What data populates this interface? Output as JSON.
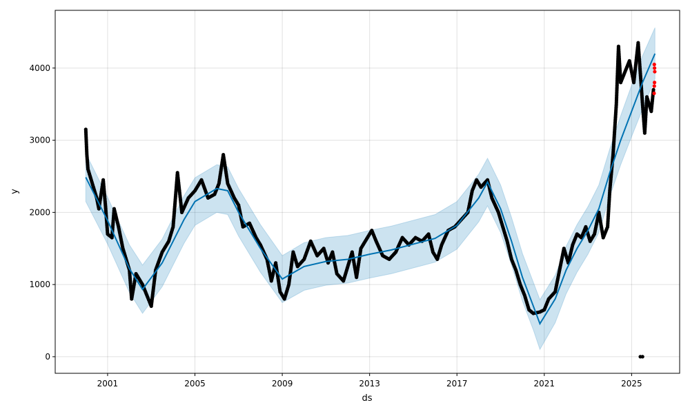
{
  "chart_data": {
    "type": "line",
    "title": "",
    "xlabel": "ds",
    "ylabel": "y",
    "xlim": [
      1998.6,
      2027.2
    ],
    "ylim": [
      -230,
      4800
    ],
    "grid": true,
    "x_ticks": [
      2001,
      2005,
      2009,
      2013,
      2017,
      2021,
      2025
    ],
    "x_tick_labels": [
      "2001",
      "2005",
      "2009",
      "2013",
      "2017",
      "2021",
      "2025"
    ],
    "y_ticks": [
      0,
      1000,
      2000,
      3000,
      4000
    ],
    "y_tick_labels": [
      "0",
      "1000",
      "2000",
      "3000",
      "4000"
    ],
    "colors": {
      "observed": "#000000",
      "forecast": "#0072B2",
      "interval": "#0072B2",
      "highlight": "#ff0000"
    },
    "forecast": {
      "x": [
        2000.0,
        2001.0,
        2002.0,
        2002.6,
        2003.5,
        2004.5,
        2005.0,
        2006.0,
        2006.5,
        2007.0,
        2008.0,
        2009.0,
        2010.0,
        2011.0,
        2012.0,
        2013.0,
        2014.0,
        2015.0,
        2016.0,
        2017.0,
        2018.0,
        2018.4,
        2019.0,
        2019.5,
        2020.0,
        2020.5,
        2020.8,
        2021.5,
        2022.0,
        2022.5,
        2023.0,
        2023.5,
        2024.0,
        2024.5,
        2025.0,
        2025.5,
        2026.07
      ],
      "yhat": [
        2486,
        1886,
        1219,
        933,
        1300,
        1900,
        2150,
        2330,
        2300,
        2000,
        1500,
        1076,
        1250,
        1320,
        1350,
        1420,
        1480,
        1560,
        1640,
        1820,
        2200,
        2420,
        2050,
        1600,
        1100,
        700,
        457,
        800,
        1200,
        1500,
        1750,
        2050,
        2550,
        3000,
        3400,
        3800,
        4200
      ],
      "yhat_lower": [
        2150,
        1560,
        890,
        600,
        970,
        1570,
        1820,
        2000,
        1970,
        1670,
        1170,
        750,
        920,
        990,
        1020,
        1090,
        1150,
        1230,
        1310,
        1490,
        1870,
        2090,
        1720,
        1270,
        770,
        370,
        100,
        470,
        870,
        1170,
        1420,
        1720,
        2220,
        2660,
        3050,
        3430,
        3850
      ],
      "yhat_upper": [
        2820,
        2210,
        1550,
        1270,
        1630,
        2230,
        2480,
        2660,
        2630,
        2330,
        1830,
        1400,
        1580,
        1650,
        1680,
        1750,
        1810,
        1890,
        1970,
        2150,
        2530,
        2750,
        2380,
        1930,
        1430,
        1030,
        790,
        1130,
        1530,
        1830,
        2080,
        2380,
        2880,
        3340,
        3760,
        4170,
        4560
      ]
    },
    "observed": {
      "x": [
        2000.0,
        2000.05,
        2000.1,
        2000.3,
        2000.5,
        2000.6,
        2000.8,
        2000.9,
        2001.0,
        2001.2,
        2001.3,
        2001.5,
        2001.7,
        2002.0,
        2002.1,
        2002.3,
        2002.6,
        2002.8,
        2003.0,
        2003.2,
        2003.5,
        2003.8,
        2004.0,
        2004.2,
        2004.4,
        2004.7,
        2005.0,
        2005.3,
        2005.6,
        2005.9,
        2006.1,
        2006.3,
        2006.5,
        2006.8,
        2007.0,
        2007.2,
        2007.5,
        2007.8,
        2008.0,
        2008.3,
        2008.5,
        2008.7,
        2008.9,
        2009.1,
        2009.3,
        2009.5,
        2009.7,
        2010.0,
        2010.3,
        2010.6,
        2010.9,
        2011.1,
        2011.3,
        2011.5,
        2011.8,
        2012.0,
        2012.2,
        2012.4,
        2012.6,
        2012.9,
        2013.1,
        2013.3,
        2013.6,
        2013.9,
        2014.2,
        2014.5,
        2014.8,
        2015.1,
        2015.4,
        2015.7,
        2015.9,
        2016.1,
        2016.3,
        2016.6,
        2016.9,
        2017.2,
        2017.5,
        2017.7,
        2017.9,
        2018.1,
        2018.4,
        2018.6,
        2018.9,
        2019.1,
        2019.3,
        2019.5,
        2019.7,
        2019.9,
        2020.1,
        2020.3,
        2020.5,
        2020.8,
        2021.0,
        2021.2,
        2021.5,
        2021.7,
        2021.9,
        2022.1,
        2022.3,
        2022.5,
        2022.7,
        2022.9,
        2023.1,
        2023.3,
        2023.5,
        2023.7,
        2023.9,
        2024.0,
        2024.15,
        2024.3,
        2024.4,
        2024.5,
        2024.7,
        2024.9,
        2025.1,
        2025.3,
        2025.5,
        2025.6,
        2025.7,
        2025.9,
        2026.0
      ],
      "y": [
        3150,
        2800,
        2600,
        2400,
        2200,
        2050,
        2450,
        2100,
        1700,
        1650,
        2050,
        1800,
        1500,
        1200,
        800,
        1150,
        1000,
        850,
        700,
        1200,
        1450,
        1600,
        1800,
        2550,
        2000,
        2200,
        2300,
        2450,
        2200,
        2250,
        2400,
        2800,
        2400,
        2200,
        2100,
        1800,
        1850,
        1650,
        1550,
        1350,
        1050,
        1300,
        900,
        800,
        1000,
        1450,
        1250,
        1350,
        1600,
        1400,
        1500,
        1300,
        1450,
        1150,
        1050,
        1250,
        1450,
        1100,
        1500,
        1650,
        1750,
        1600,
        1400,
        1350,
        1450,
        1650,
        1550,
        1650,
        1600,
        1700,
        1450,
        1350,
        1550,
        1750,
        1800,
        1900,
        2000,
        2300,
        2450,
        2350,
        2450,
        2200,
        2000,
        1800,
        1600,
        1350,
        1200,
        1000,
        850,
        650,
        600,
        620,
        650,
        800,
        900,
        1200,
        1500,
        1300,
        1550,
        1700,
        1650,
        1800,
        1600,
        1700,
        2000,
        1650,
        1800,
        2300,
        2800,
        3500,
        4300,
        3800,
        3950,
        4100,
        3800,
        4350,
        3500,
        3100,
        3600,
        3400,
        3700
      ],
      "outliers_x": [
        2025.4,
        2025.5
      ],
      "outliers_y": [
        0,
        0
      ]
    },
    "highlighted": {
      "x": [
        2026.03,
        2026.04,
        2026.05,
        2026.06,
        2026.05,
        2026.04
      ],
      "y": [
        3650,
        3750,
        3800,
        3950,
        4000,
        4050
      ]
    }
  }
}
